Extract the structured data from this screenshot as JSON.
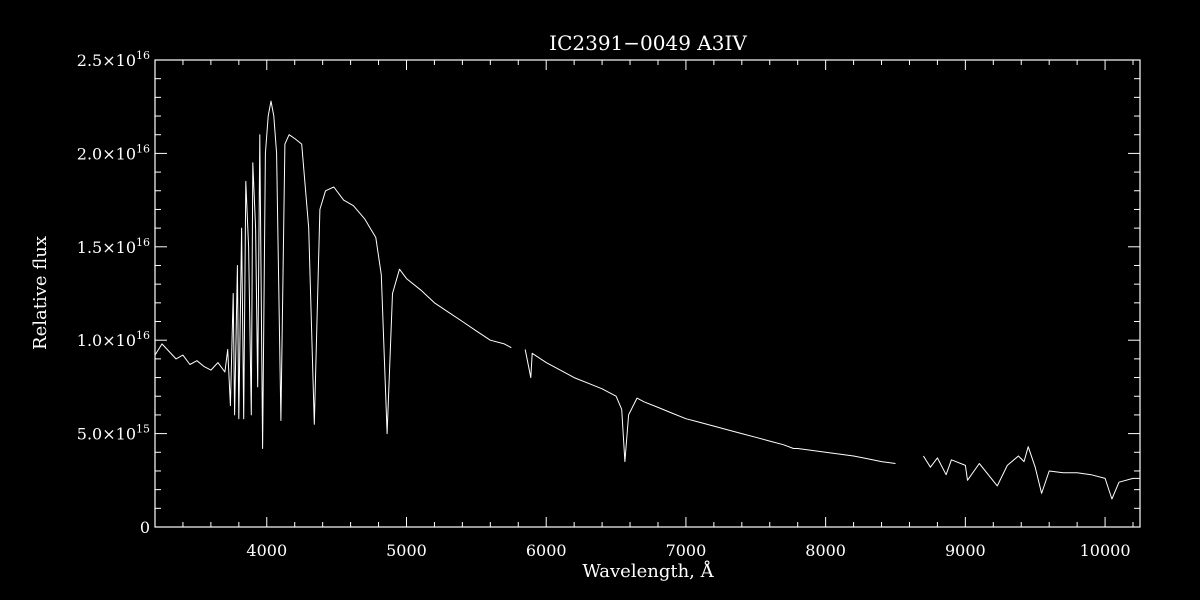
{
  "chart_data": {
    "type": "line",
    "title": "IC2391−0049   A3IV",
    "xlabel": "Wavelength, Å",
    "ylabel": "Relative flux",
    "xlim": [
      3200,
      10250
    ],
    "ylim": [
      0,
      2.5e+16
    ],
    "xticks": [
      4000,
      5000,
      6000,
      7000,
      8000,
      9000,
      10000
    ],
    "xtick_labels": [
      "4000",
      "5000",
      "6000",
      "7000",
      "8000",
      "9000",
      "10000"
    ],
    "yticks": [
      0,
      5000000000000000.0,
      1e+16,
      1.5e+16,
      2e+16,
      2.5e+16
    ],
    "ytick_labels": [
      {
        "mantissa": "0",
        "exponent": ""
      },
      {
        "mantissa": "5.0×10",
        "exponent": "15"
      },
      {
        "mantissa": "1.0×10",
        "exponent": "16"
      },
      {
        "mantissa": "1.5×10",
        "exponent": "16"
      },
      {
        "mantissa": "2.0×10",
        "exponent": "16"
      },
      {
        "mantissa": "2.5×10",
        "exponent": "16"
      }
    ],
    "grid": false,
    "colors": {
      "background": "#000000",
      "foreground": "#ffffff"
    },
    "series": [
      {
        "segments": [
          [
            [
              3200,
              9200000000000000.0
            ],
            [
              3250,
              9800000000000000.0
            ],
            [
              3300,
              9400000000000000.0
            ],
            [
              3350,
              9000000000000000.0
            ],
            [
              3400,
              9200000000000000.0
            ],
            [
              3450,
              8700000000000000.0
            ],
            [
              3500,
              8900000000000000.0
            ],
            [
              3550,
              8600000000000000.0
            ],
            [
              3600,
              8400000000000000.0
            ],
            [
              3650,
              8800000000000000.0
            ],
            [
              3700,
              8300000000000000.0
            ],
            [
              3720,
              9500000000000000.0
            ],
            [
              3740,
              6500000000000000.0
            ],
            [
              3760,
              1.25e+16
            ],
            [
              3770,
              6000000000000000.0
            ],
            [
              3790,
              1.4e+16
            ],
            [
              3800,
              5800000000000000.0
            ],
            [
              3820,
              1.6e+16
            ],
            [
              3835,
              5800000000000000.0
            ],
            [
              3850,
              1.85e+16
            ],
            [
              3870,
              1.5e+16
            ],
            [
              3889,
              6000000000000000.0
            ],
            [
              3900,
              1.95e+16
            ],
            [
              3920,
              1.6e+16
            ],
            [
              3935,
              7500000000000000.0
            ],
            [
              3950,
              2.1e+16
            ],
            [
              3970,
              4200000000000000.0
            ],
            [
              3990,
              2e+16
            ],
            [
              4010,
              2.2e+16
            ],
            [
              4030,
              2.28e+16
            ],
            [
              4050,
              2.2e+16
            ],
            [
              4070,
              2e+16
            ],
            [
              4101,
              5700000000000000.0
            ],
            [
              4130,
              2.05e+16
            ],
            [
              4160,
              2.1e+16
            ],
            [
              4200,
              2.08e+16
            ],
            [
              4250,
              2.05e+16
            ],
            [
              4300,
              1.6e+16
            ],
            [
              4340,
              5500000000000000.0
            ],
            [
              4380,
              1.7e+16
            ],
            [
              4420,
              1.8e+16
            ],
            [
              4480,
              1.82e+16
            ],
            [
              4550,
              1.75e+16
            ],
            [
              4620,
              1.72e+16
            ],
            [
              4700,
              1.65e+16
            ],
            [
              4780,
              1.55e+16
            ],
            [
              4820,
              1.35e+16
            ],
            [
              4861,
              5000000000000000.0
            ],
            [
              4900,
              1.25e+16
            ],
            [
              4950,
              1.38e+16
            ],
            [
              5000,
              1.33e+16
            ],
            [
              5100,
              1.27e+16
            ],
            [
              5200,
              1.2e+16
            ],
            [
              5300,
              1.15e+16
            ],
            [
              5400,
              1.1e+16
            ],
            [
              5500,
              1.05e+16
            ],
            [
              5600,
              1e+16
            ],
            [
              5700,
              9800000000000000.0
            ],
            [
              5750,
              9600000000000000.0
            ]
          ],
          [
            [
              5850,
              9500000000000000.0
            ],
            [
              5890,
              8000000000000000.0
            ],
            [
              5900,
              9300000000000000.0
            ],
            [
              6000,
              8800000000000000.0
            ],
            [
              6100,
              8400000000000000.0
            ],
            [
              6200,
              8000000000000000.0
            ],
            [
              6300,
              7700000000000000.0
            ],
            [
              6400,
              7400000000000000.0
            ],
            [
              6500,
              7000000000000000.0
            ],
            [
              6540,
              6300000000000000.0
            ],
            [
              6563,
              3500000000000000.0
            ],
            [
              6590,
              6000000000000000.0
            ],
            [
              6650,
              6900000000000000.0
            ],
            [
              6700,
              6700000000000000.0
            ],
            [
              6800,
              6400000000000000.0
            ],
            [
              6900,
              6100000000000000.0
            ],
            [
              7000,
              5800000000000000.0
            ],
            [
              7100,
              5600000000000000.0
            ],
            [
              7200,
              5400000000000000.0
            ],
            [
              7300,
              5200000000000000.0
            ],
            [
              7400,
              5000000000000000.0
            ],
            [
              7500,
              4800000000000000.0
            ],
            [
              7600,
              4600000000000000.0
            ],
            [
              7700,
              4400000000000000.0
            ],
            [
              7770,
              4200000000000000.0
            ],
            [
              7800,
              4200000000000000.0
            ],
            [
              7900,
              4100000000000000.0
            ],
            [
              8000,
              4000000000000000.0
            ],
            [
              8100,
              3900000000000000.0
            ],
            [
              8200,
              3800000000000000.0
            ],
            [
              8300,
              3650000000000000.0
            ],
            [
              8400,
              3500000000000000.0
            ],
            [
              8500,
              3400000000000000.0
            ]
          ],
          [
            [
              8700,
              3800000000000000.0
            ],
            [
              8750,
              3200000000000000.0
            ],
            [
              8800,
              3700000000000000.0
            ],
            [
              8862,
              2800000000000000.0
            ],
            [
              8900,
              3600000000000000.0
            ],
            [
              9000,
              3300000000000000.0
            ],
            [
              9015,
              2500000000000000.0
            ],
            [
              9100,
              3400000000000000.0
            ],
            [
              9229,
              2200000000000000.0
            ],
            [
              9300,
              3300000000000000.0
            ],
            [
              9380,
              3800000000000000.0
            ],
            [
              9420,
              3500000000000000.0
            ],
            [
              9450,
              4300000000000000.0
            ],
            [
              9500,
              3200000000000000.0
            ],
            [
              9546,
              1800000000000000.0
            ],
            [
              9600,
              3000000000000000.0
            ],
            [
              9700,
              2900000000000000.0
            ],
            [
              9800,
              2900000000000000.0
            ],
            [
              9900,
              2800000000000000.0
            ],
            [
              10000,
              2600000000000000.0
            ],
            [
              10049,
              1500000000000000.0
            ],
            [
              10100,
              2400000000000000.0
            ],
            [
              10200,
              2600000000000000.0
            ],
            [
              10250,
              2600000000000000.0
            ]
          ]
        ]
      }
    ]
  }
}
